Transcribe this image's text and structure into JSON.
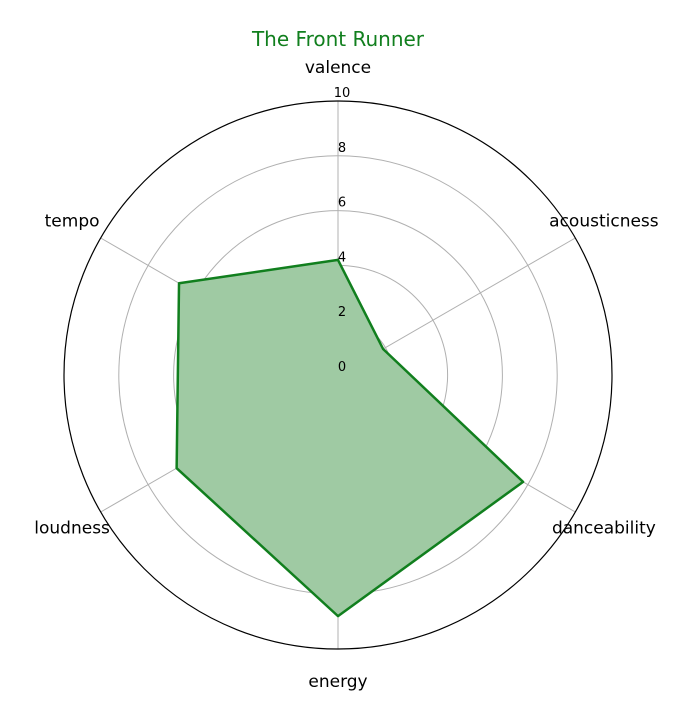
{
  "chart_data": {
    "type": "radar",
    "title": "The Front Runner",
    "axes": [
      "valence",
      "acousticness",
      "danceability",
      "energy",
      "loudness",
      "tempo"
    ],
    "series": [
      {
        "values": [
          4.2,
          1.9,
          7.8,
          8.8,
          6.8,
          6.7
        ]
      }
    ],
    "rlim": [
      0,
      10
    ],
    "rticks": [
      0,
      2,
      4,
      6,
      8,
      10
    ],
    "grid": true,
    "colors": {
      "line": "#117f1e",
      "fill": "#9fcaa3",
      "grid": "#b0b0b0",
      "outline": "#000000"
    }
  }
}
